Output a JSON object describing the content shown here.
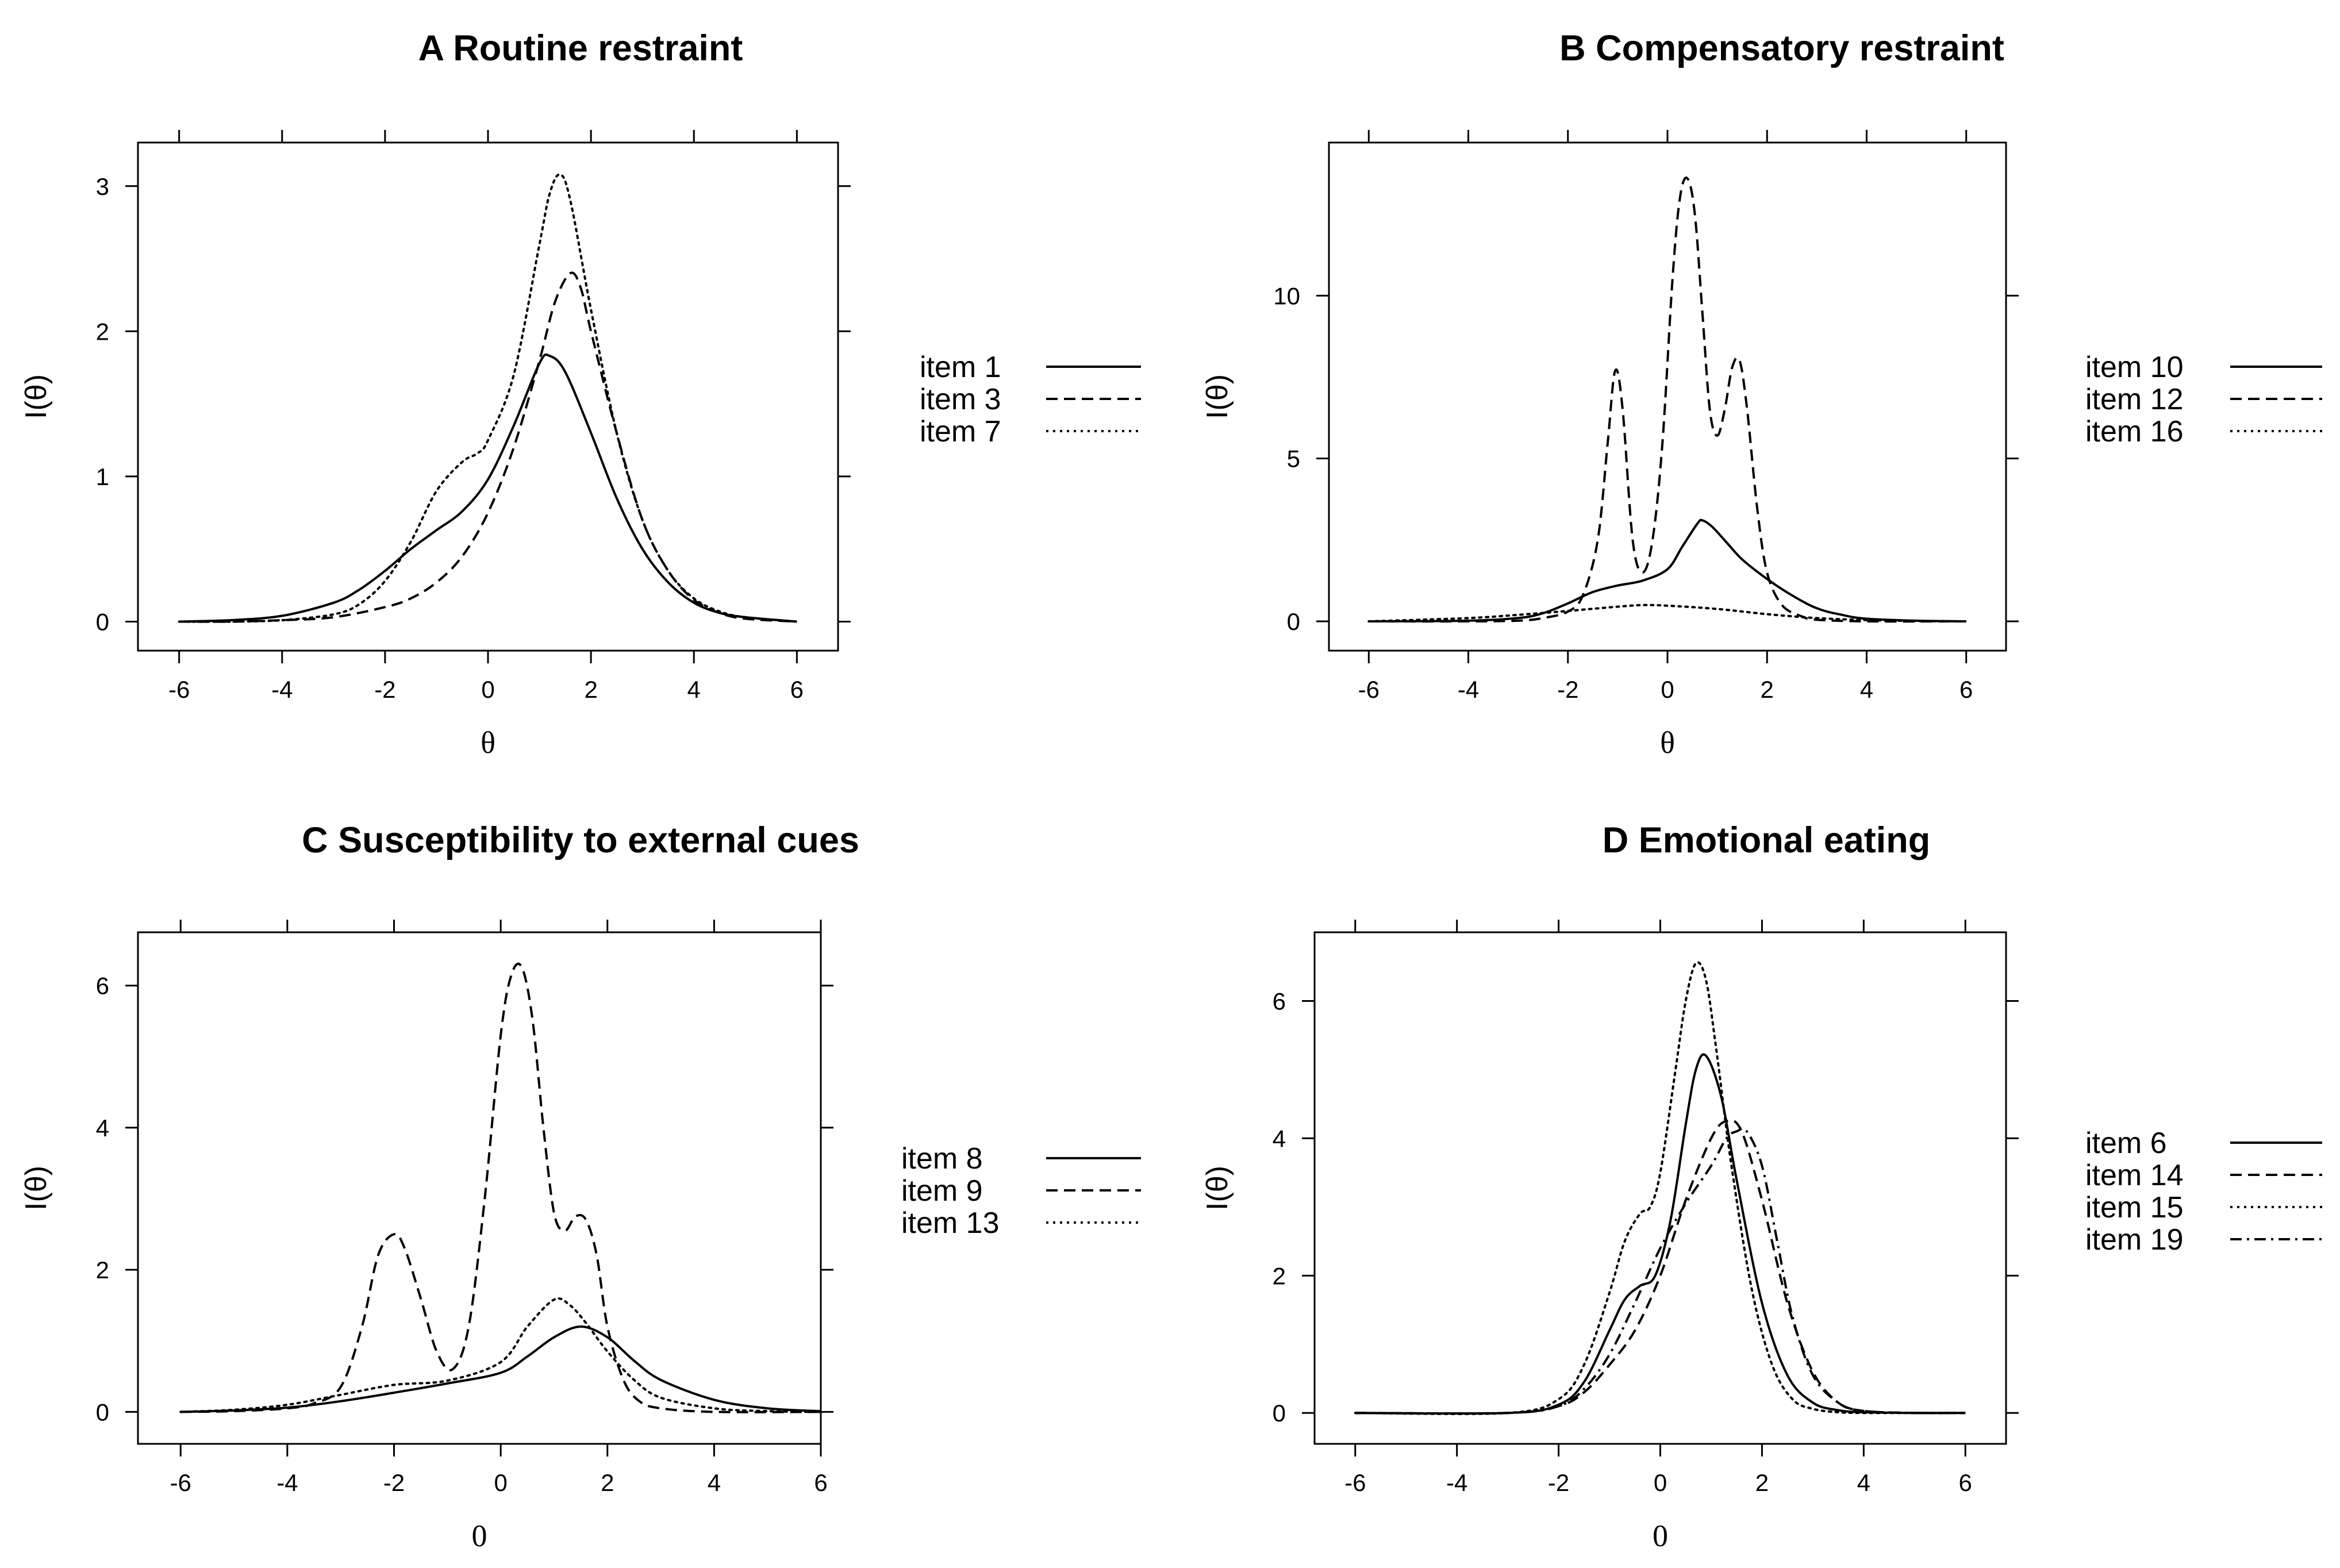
{
  "chart_data": [
    {
      "type": "line",
      "title": "A Routine restraint",
      "xlabel": "θ",
      "ylabel": "I(θ)",
      "xlim": [
        -6.8,
        6.8
      ],
      "ylim": [
        -0.2,
        3.3
      ],
      "xticks": [
        -6,
        -4,
        -2,
        0,
        2,
        4,
        6
      ],
      "yticks": [
        0,
        1,
        2,
        3
      ],
      "series": [
        {
          "name": "item 1",
          "style": "solid",
          "x": [
            -6,
            -5,
            -4,
            -3,
            -2.5,
            -2,
            -1.5,
            -1,
            -0.5,
            0,
            0.5,
            1,
            1.2,
            1.5,
            2,
            2.5,
            3,
            3.5,
            4,
            4.5,
            5,
            6
          ],
          "y": [
            0,
            0.01,
            0.04,
            0.13,
            0.22,
            0.35,
            0.5,
            0.63,
            0.76,
            0.98,
            1.35,
            1.78,
            1.83,
            1.72,
            1.3,
            0.85,
            0.5,
            0.27,
            0.13,
            0.06,
            0.03,
            0
          ]
        },
        {
          "name": "item 3",
          "style": "dashed",
          "x": [
            -6,
            -5,
            -4,
            -3,
            -2,
            -1.5,
            -1,
            -0.5,
            0,
            0.5,
            1,
            1.3,
            1.6,
            1.8,
            2,
            2.5,
            3,
            3.5,
            4,
            4.5,
            5,
            6
          ],
          "y": [
            0,
            0,
            0.01,
            0.03,
            0.1,
            0.16,
            0.27,
            0.45,
            0.75,
            1.2,
            1.8,
            2.2,
            2.4,
            2.3,
            2.0,
            1.3,
            0.7,
            0.35,
            0.15,
            0.06,
            0.02,
            0
          ]
        },
        {
          "name": "item 7",
          "style": "dotted",
          "x": [
            -6,
            -5,
            -4,
            -3,
            -2.5,
            -2,
            -1.5,
            -1,
            -0.5,
            -0.2,
            0,
            0.5,
            1,
            1.2,
            1.4,
            1.6,
            2,
            2.5,
            3,
            3.5,
            4,
            4.5,
            5,
            6
          ],
          "y": [
            0,
            0,
            0.01,
            0.05,
            0.12,
            0.28,
            0.55,
            0.9,
            1.1,
            1.16,
            1.25,
            1.7,
            2.6,
            2.95,
            3.08,
            2.9,
            2.15,
            1.3,
            0.7,
            0.35,
            0.16,
            0.07,
            0.03,
            0
          ]
        }
      ],
      "legend": [
        "item 1",
        "item 3",
        "item 7"
      ]
    },
    {
      "type": "line",
      "title": "B Compensatory restraint",
      "xlabel": "θ",
      "ylabel": "I(θ)",
      "xlim": [
        -6.8,
        6.8
      ],
      "ylim": [
        -0.9,
        14.7
      ],
      "xticks": [
        -6,
        -4,
        -2,
        0,
        2,
        4,
        6
      ],
      "yticks": [
        0,
        5,
        10
      ],
      "series": [
        {
          "name": "item 10",
          "style": "solid",
          "x": [
            -6,
            -4,
            -3,
            -2.5,
            -2,
            -1.5,
            -1,
            -0.5,
            0,
            0.3,
            0.6,
            0.7,
            0.9,
            1.2,
            1.5,
            2,
            2.5,
            3,
            3.5,
            4,
            5,
            6
          ],
          "y": [
            0,
            0.02,
            0.1,
            0.25,
            0.55,
            0.9,
            1.1,
            1.25,
            1.6,
            2.3,
            3.0,
            3.1,
            2.9,
            2.4,
            1.9,
            1.3,
            0.8,
            0.4,
            0.2,
            0.08,
            0.02,
            0
          ]
        },
        {
          "name": "item 12",
          "style": "dashed",
          "x": [
            -6,
            -4,
            -3,
            -2.5,
            -2,
            -1.7,
            -1.4,
            -1.2,
            -1.05,
            -0.9,
            -0.7,
            -0.5,
            -0.3,
            -0.1,
            0.1,
            0.25,
            0.4,
            0.55,
            0.7,
            0.85,
            1.0,
            1.15,
            1.3,
            1.45,
            1.6,
            1.8,
            2.0,
            2.3,
            2.7,
            3,
            4,
            6
          ],
          "y": [
            0,
            0,
            0.02,
            0.1,
            0.3,
            0.8,
            2.5,
            5.5,
            7.7,
            6.5,
            2.5,
            1.5,
            2.5,
            5.5,
            10.5,
            13.0,
            13.6,
            12.5,
            9.5,
            6.5,
            5.7,
            6.5,
            7.8,
            8.0,
            6.5,
            3.5,
            1.5,
            0.5,
            0.15,
            0.05,
            0,
            0
          ]
        },
        {
          "name": "item 16",
          "style": "dotted",
          "x": [
            -6,
            -4,
            -3,
            -2,
            -1,
            -0.5,
            0,
            1,
            2,
            3,
            4,
            5,
            6
          ],
          "y": [
            0,
            0.1,
            0.2,
            0.32,
            0.45,
            0.5,
            0.48,
            0.38,
            0.22,
            0.1,
            0.04,
            0.01,
            0
          ]
        }
      ],
      "legend": [
        "item 10",
        "item 12",
        "item 16"
      ]
    },
    {
      "type": "line",
      "title": "C Susceptibility to external cues",
      "xlabel": "0",
      "ylabel": "I(θ)",
      "xlim": [
        -6.8,
        6.0
      ],
      "ylim": [
        -0.45,
        6.75
      ],
      "xticks": [
        -6,
        -4,
        -2,
        0,
        2,
        4,
        6
      ],
      "yticks": [
        0,
        2,
        4,
        6
      ],
      "series": [
        {
          "name": "item 8",
          "style": "solid",
          "x": [
            -6,
            -5,
            -4,
            -3,
            -2,
            -1,
            0,
            0.5,
            1,
            1.5,
            2,
            2.5,
            3,
            4,
            5,
            6
          ],
          "y": [
            0,
            0.02,
            0.06,
            0.15,
            0.27,
            0.4,
            0.55,
            0.78,
            1.05,
            1.2,
            1.05,
            0.72,
            0.45,
            0.17,
            0.05,
            0.01
          ]
        },
        {
          "name": "item 9",
          "style": "dashed",
          "x": [
            -6,
            -5,
            -4,
            -3.5,
            -3,
            -2.6,
            -2.3,
            -2,
            -1.8,
            -1.5,
            -1.2,
            -0.9,
            -0.6,
            -0.3,
            0,
            0.2,
            0.4,
            0.6,
            0.8,
            1,
            1.2,
            1.4,
            1.6,
            1.8,
            2,
            2.3,
            2.6,
            3,
            4,
            6
          ],
          "y": [
            0,
            0.01,
            0.05,
            0.12,
            0.35,
            1.2,
            2.2,
            2.5,
            2.3,
            1.6,
            0.85,
            0.6,
            1.2,
            3.0,
            5.3,
            6.15,
            6.25,
            5.5,
            4.0,
            2.8,
            2.55,
            2.75,
            2.7,
            2.2,
            1.2,
            0.45,
            0.15,
            0.05,
            0,
            0
          ]
        },
        {
          "name": "item 13",
          "style": "dotted",
          "x": [
            -6,
            -5,
            -4,
            -3,
            -2,
            -1,
            0,
            0.5,
            1,
            1.3,
            1.6,
            2,
            2.5,
            3,
            4,
            5,
            6
          ],
          "y": [
            0,
            0.03,
            0.1,
            0.24,
            0.38,
            0.44,
            0.7,
            1.2,
            1.58,
            1.5,
            1.25,
            0.85,
            0.45,
            0.2,
            0.05,
            0.01,
            0
          ]
        }
      ],
      "legend": [
        "item 8",
        "item 9",
        "item 13"
      ]
    },
    {
      "type": "line",
      "title": "D Emotional eating",
      "xlabel": "0",
      "ylabel": "I(θ)",
      "xlim": [
        -6.8,
        6.8
      ],
      "ylim": [
        -0.45,
        7.0
      ],
      "xticks": [
        -6,
        -4,
        -2,
        0,
        2,
        4,
        6
      ],
      "yticks": [
        0,
        2,
        4,
        6
      ],
      "series": [
        {
          "name": "item 6",
          "style": "solid",
          "x": [
            -6,
            -3,
            -2,
            -1.5,
            -1,
            -0.7,
            -0.4,
            -0.1,
            0.2,
            0.5,
            0.7,
            0.9,
            1.2,
            1.5,
            2,
            2.5,
            3,
            3.5,
            4,
            5,
            6
          ],
          "y": [
            0,
            0,
            0.12,
            0.45,
            1.2,
            1.65,
            1.85,
            2.0,
            2.8,
            4.2,
            5.0,
            5.2,
            4.6,
            3.4,
            1.6,
            0.55,
            0.15,
            0.04,
            0.01,
            0,
            0
          ]
        },
        {
          "name": "item 14",
          "style": "dashed",
          "x": [
            -6,
            -3,
            -2,
            -1.5,
            -1,
            -0.5,
            0,
            0.5,
            1,
            1.3,
            1.6,
            2,
            2.5,
            3,
            3.5,
            4,
            5,
            6
          ],
          "y": [
            0,
            0,
            0.1,
            0.3,
            0.7,
            1.2,
            2.0,
            3.1,
            4.0,
            4.25,
            4.1,
            3.1,
            1.6,
            0.6,
            0.15,
            0.03,
            0,
            0
          ]
        },
        {
          "name": "item 15",
          "style": "dotted",
          "x": [
            -6,
            -3,
            -2,
            -1.5,
            -1,
            -0.7,
            -0.4,
            -0.2,
            0,
            0.3,
            0.5,
            0.7,
            0.9,
            1.1,
            1.4,
            1.8,
            2.2,
            2.6,
            3,
            3.5,
            4,
            5,
            6
          ],
          "y": [
            0,
            0,
            0.2,
            0.7,
            1.75,
            2.5,
            2.9,
            3.0,
            3.5,
            5.0,
            6.0,
            6.55,
            6.3,
            5.3,
            3.6,
            1.8,
            0.7,
            0.2,
            0.06,
            0.01,
            0,
            0,
            0
          ]
        },
        {
          "name": "item 19",
          "style": "dashdot",
          "x": [
            -6,
            -3,
            -2,
            -1.5,
            -1,
            -0.5,
            0,
            0.5,
            1,
            1.3,
            1.5,
            1.7,
            2,
            2.3,
            2.6,
            3,
            3.5,
            4,
            5,
            6
          ],
          "y": [
            0,
            0,
            0.1,
            0.35,
            0.85,
            1.6,
            2.4,
            3.05,
            3.6,
            4.0,
            4.1,
            4.1,
            3.6,
            2.5,
            1.4,
            0.55,
            0.15,
            0.03,
            0,
            0
          ]
        }
      ],
      "legend": [
        "item 6",
        "item 14",
        "item 15",
        "item 19"
      ]
    }
  ]
}
